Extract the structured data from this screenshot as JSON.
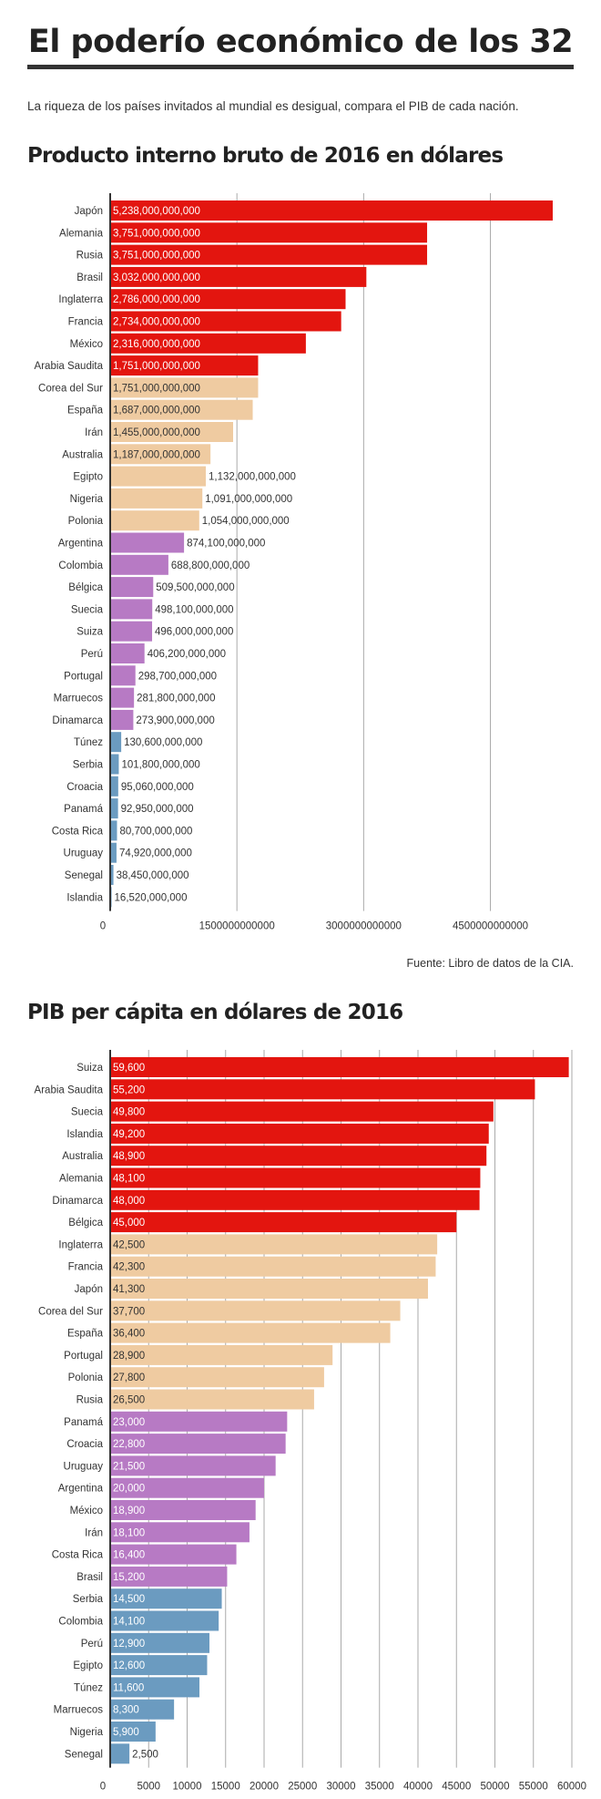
{
  "header": {
    "title": "El poderío económico de los 32",
    "intro": "La riqueza de los países invitados al mundial es desigual, compara el PIB de cada nación."
  },
  "source": "Fuente: Libro de datos de la CIA.",
  "colors": {
    "top": "#e3150f",
    "upper": "#efcba1",
    "middle": "#b77ac4",
    "lower": "#6b9bc0",
    "grid": "#aaaaaa",
    "axis": "#333333"
  },
  "chart_data": [
    {
      "type": "bar",
      "orientation": "horizontal",
      "title": "Producto interno bruto de 2016 en dólares",
      "xlim": [
        0,
        5238000000000
      ],
      "ticks": [
        {
          "value": 0,
          "label": "0"
        },
        {
          "value": 1500000000000,
          "label": "1500000000000"
        },
        {
          "value": 3000000000000,
          "label": "3000000000000"
        },
        {
          "value": 4500000000000,
          "label": "4500000000000"
        }
      ],
      "grid": true,
      "categories": [
        "Japón",
        "Alemania",
        "Rusia",
        "Brasil",
        "Inglaterra",
        "Francia",
        "México",
        "Arabia Saudita",
        "Corea del Sur",
        "España",
        "Irán",
        "Australia",
        "Egipto",
        "Nigeria",
        "Polonia",
        "Argentina",
        "Colombia",
        "Bélgica",
        "Suecia",
        "Suiza",
        "Perú",
        "Portugal",
        "Marruecos",
        "Dinamarca",
        "Túnez",
        "Serbia",
        "Croacia",
        "Panamá",
        "Costa Rica",
        "Uruguay",
        "Senegal",
        "Islandia"
      ],
      "values": [
        5238000000000,
        3751000000000,
        3751000000000,
        3032000000000,
        2786000000000,
        2734000000000,
        2316000000000,
        1751000000000,
        1751000000000,
        1687000000000,
        1455000000000,
        1187000000000,
        1132000000000,
        1091000000000,
        1054000000000,
        874100000000,
        688800000000,
        509500000000,
        498100000000,
        496000000000,
        406200000000,
        298700000000,
        281800000000,
        273900000000,
        130600000000,
        101800000000,
        95060000000,
        92950000000,
        80700000000,
        74920000000,
        38450000000,
        16520000000
      ],
      "value_labels": [
        "5,238,000,000,000",
        "3,751,000,000,000",
        "3,751,000,000,000",
        "3,032,000,000,000",
        "2,786,000,000,000",
        "2,734,000,000,000",
        "2,316,000,000,000",
        "1,751,000,000,000",
        "1,751,000,000,000",
        "1,687,000,000,000",
        "1,455,000,000,000",
        "1,187,000,000,000",
        "1,132,000,000,000",
        "1,091,000,000,000",
        "1,054,000,000,000",
        "874,100,000,000",
        "688,800,000,000",
        "509,500,000,000",
        "498,100,000,000",
        "496,000,000,000",
        "406,200,000,000",
        "298,700,000,000",
        "281,800,000,000",
        "273,900,000,000",
        "130,600,000,000",
        "101,800,000,000",
        "95,060,000,000",
        "92,950,000,000",
        "80,700,000,000",
        "74,920,000,000",
        "38,450,000,000",
        "16,520,000,000"
      ],
      "groups": [
        "top",
        "top",
        "top",
        "top",
        "top",
        "top",
        "top",
        "top",
        "upper",
        "upper",
        "upper",
        "upper",
        "upper",
        "upper",
        "upper",
        "middle",
        "middle",
        "middle",
        "middle",
        "middle",
        "middle",
        "middle",
        "middle",
        "middle",
        "lower",
        "lower",
        "lower",
        "lower",
        "lower",
        "lower",
        "lower",
        "lower"
      ],
      "labels_inside": [
        true,
        true,
        true,
        true,
        true,
        true,
        true,
        true,
        true,
        true,
        true,
        true,
        false,
        false,
        false,
        false,
        false,
        false,
        false,
        false,
        false,
        false,
        false,
        false,
        false,
        false,
        false,
        false,
        false,
        false,
        false,
        false
      ]
    },
    {
      "type": "bar",
      "orientation": "horizontal",
      "title": "PIB per cápita en dólares de 2016",
      "xlim": [
        0,
        60000
      ],
      "ticks": [
        {
          "value": 0,
          "label": "0"
        },
        {
          "value": 5000,
          "label": "5000"
        },
        {
          "value": 10000,
          "label": "10000"
        },
        {
          "value": 15000,
          "label": "15000"
        },
        {
          "value": 20000,
          "label": "20000"
        },
        {
          "value": 25000,
          "label": "25000"
        },
        {
          "value": 30000,
          "label": "30000"
        },
        {
          "value": 35000,
          "label": "35000"
        },
        {
          "value": 40000,
          "label": "40000"
        },
        {
          "value": 45000,
          "label": "45000"
        },
        {
          "value": 50000,
          "label": "50000"
        },
        {
          "value": 55000,
          "label": "55000"
        },
        {
          "value": 60000,
          "label": "60000"
        }
      ],
      "grid": true,
      "categories": [
        "Suiza",
        "Arabia Saudita",
        "Suecia",
        "Islandia",
        "Australia",
        "Alemania",
        "Dinamarca",
        "Bélgica",
        "Inglaterra",
        "Francia",
        "Japón",
        "Corea del Sur",
        "España",
        "Portugal",
        "Polonia",
        "Rusia",
        "Panamá",
        "Croacia",
        "Uruguay",
        "Argentina",
        "México",
        "Irán",
        "Costa Rica",
        "Brasil",
        "Serbia",
        "Colombia",
        "Perú",
        "Egipto",
        "Túnez",
        "Marruecos",
        "Nigeria",
        "Senegal"
      ],
      "values": [
        59600,
        55200,
        49800,
        49200,
        48900,
        48100,
        48000,
        45000,
        42500,
        42300,
        41300,
        37700,
        36400,
        28900,
        27800,
        26500,
        23000,
        22800,
        21500,
        20000,
        18900,
        18100,
        16400,
        15200,
        14500,
        14100,
        12900,
        12600,
        11600,
        8300,
        5900,
        2500
      ],
      "value_labels": [
        "59,600",
        "55,200",
        "49,800",
        "49,200",
        "48,900",
        "48,100",
        "48,000",
        "45,000",
        "42,500",
        "42,300",
        "41,300",
        "37,700",
        "36,400",
        "28,900",
        "27,800",
        "26,500",
        "23,000",
        "22,800",
        "21,500",
        "20,000",
        "18,900",
        "18,100",
        "16,400",
        "15,200",
        "14,500",
        "14,100",
        "12,900",
        "12,600",
        "11,600",
        "8,300",
        "5,900",
        "2,500"
      ],
      "groups": [
        "top",
        "top",
        "top",
        "top",
        "top",
        "top",
        "top",
        "top",
        "upper",
        "upper",
        "upper",
        "upper",
        "upper",
        "upper",
        "upper",
        "upper",
        "middle",
        "middle",
        "middle",
        "middle",
        "middle",
        "middle",
        "middle",
        "middle",
        "lower",
        "lower",
        "lower",
        "lower",
        "lower",
        "lower",
        "lower",
        "lower"
      ],
      "labels_inside": [
        true,
        true,
        true,
        true,
        true,
        true,
        true,
        true,
        true,
        true,
        true,
        true,
        true,
        true,
        true,
        true,
        true,
        true,
        true,
        true,
        true,
        true,
        true,
        true,
        true,
        true,
        true,
        true,
        true,
        true,
        true,
        false
      ]
    }
  ]
}
